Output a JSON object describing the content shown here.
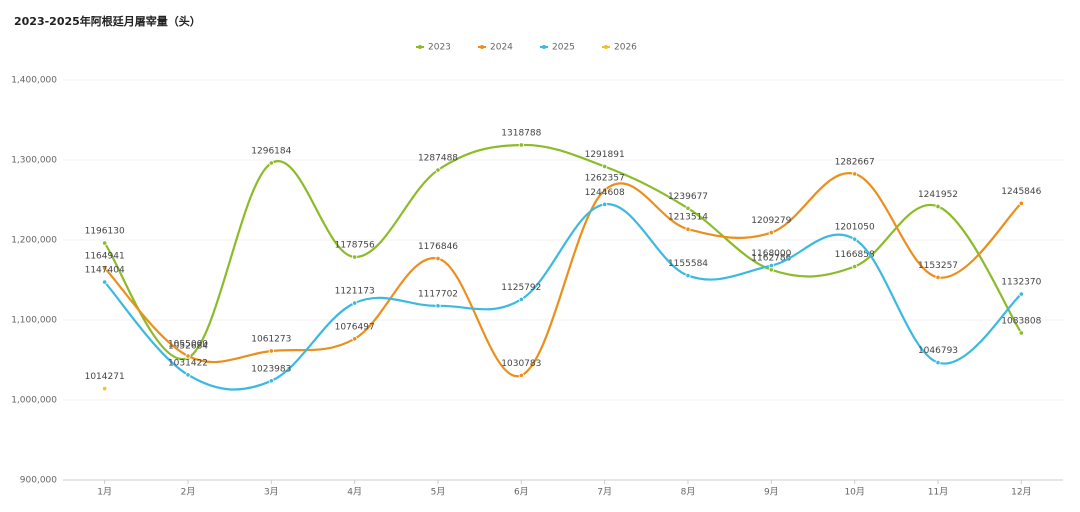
{
  "chart_data": {
    "type": "line",
    "title": "2023-2025年阿根廷月屠宰量（头）",
    "categories": [
      "1月",
      "2月",
      "3月",
      "4月",
      "5月",
      "6月",
      "7月",
      "8月",
      "9月",
      "10月",
      "11月",
      "12月"
    ],
    "series": [
      {
        "name": "2023",
        "color": "#8cbb2a",
        "values": [
          1196130,
          1052684,
          1296184,
          1178756,
          1287488,
          1318788,
          1291891,
          1239677,
          1162786,
          1166858,
          1241952,
          1083808
        ]
      },
      {
        "name": "2024",
        "color": "#ea8f1c",
        "values": [
          1164941,
          1055000,
          1061273,
          1076497,
          1176846,
          1030783,
          1262357,
          1213514,
          1209279,
          1282667,
          1153257,
          1245846
        ]
      },
      {
        "name": "2025",
        "color": "#3cb9e0",
        "values": [
          1147404,
          1031422,
          1023983,
          1121173,
          1117702,
          1125792,
          1244608,
          1155584,
          1168000,
          1201050,
          1046793,
          1132370
        ]
      },
      {
        "name": "2026",
        "color": "#f2c02a",
        "values": [
          1014271,
          null,
          null,
          null,
          null,
          null,
          null,
          null,
          null,
          null,
          null,
          null
        ]
      }
    ],
    "ylim": [
      900000,
      1400000
    ],
    "yticks": [
      {
        "value": 900000,
        "label": "900,000"
      },
      {
        "value": 1000000,
        "label": "1,000,000"
      },
      {
        "value": 1100000,
        "label": "1,100,000"
      },
      {
        "value": 1200000,
        "label": "1,200,000"
      },
      {
        "value": 1300000,
        "label": "1,300,000"
      },
      {
        "value": 1400000,
        "label": "1,400,000"
      }
    ],
    "grid": true,
    "legend": "top"
  }
}
